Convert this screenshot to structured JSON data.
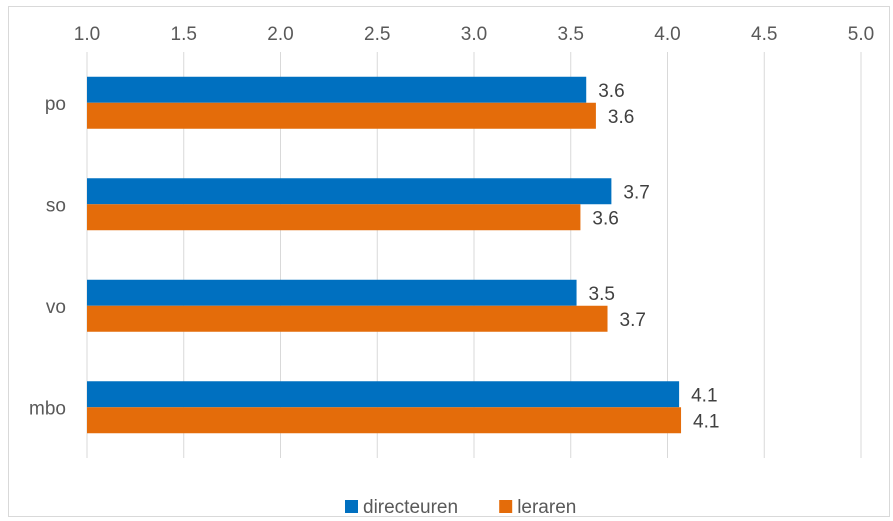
{
  "chart_data": {
    "type": "bar",
    "orientation": "horizontal",
    "categories": [
      "po",
      "so",
      "vo",
      "mbo"
    ],
    "series": [
      {
        "name": "directeuren",
        "color": "#0070C0",
        "values": [
          3.58,
          3.71,
          3.53,
          4.06
        ]
      },
      {
        "name": "leraren",
        "color": "#E46C0A",
        "values": [
          3.63,
          3.55,
          3.69,
          4.07
        ]
      }
    ],
    "data_labels": [
      [
        "3.6",
        "3.7",
        "3.5",
        "4.1"
      ],
      [
        "3.6",
        "3.6",
        "3.7",
        "4.1"
      ]
    ],
    "xlim": [
      1.0,
      5.0
    ],
    "xticks": [
      "1.0",
      "1.5",
      "2.0",
      "2.5",
      "3.0",
      "3.5",
      "4.0",
      "4.5",
      "5.0"
    ],
    "xaxis_position": "top",
    "grid": "vertical",
    "legend": "bottom",
    "title": "",
    "xlabel": "",
    "ylabel": ""
  }
}
